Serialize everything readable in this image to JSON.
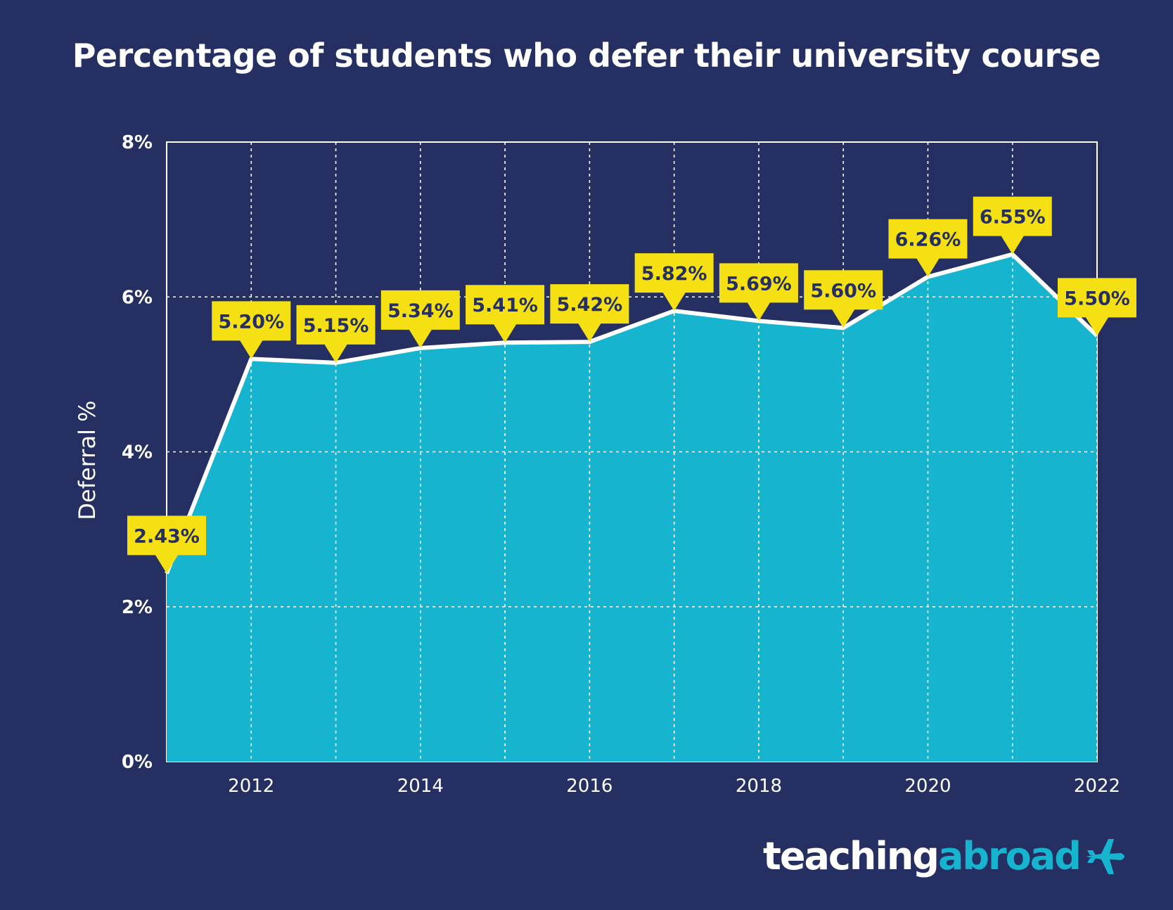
{
  "title": "Percentage of students who defer their university course",
  "logo": {
    "part1": "teaching",
    "part2": "abroad",
    "icon": "airplane-icon"
  },
  "colors": {
    "background": "#252f61",
    "area": "#17b4cf",
    "line": "#ffffff",
    "label_bg": "#f5e014",
    "label_text": "#252f61"
  },
  "chart_data": {
    "type": "area",
    "title": "Percentage of students who defer their university course",
    "xlabel": "",
    "ylabel": "Deferral %",
    "x": [
      2011,
      2012,
      2013,
      2014,
      2015,
      2016,
      2017,
      2018,
      2019,
      2020,
      2021,
      2022
    ],
    "values": [
      2.43,
      5.2,
      5.15,
      5.34,
      5.41,
      5.42,
      5.82,
      5.69,
      5.6,
      6.26,
      6.55,
      5.5
    ],
    "data_labels": [
      "2.43%",
      "5.20%",
      "5.15%",
      "5.34%",
      "5.41%",
      "5.42%",
      "5.82%",
      "5.69%",
      "5.60%",
      "6.26%",
      "6.55%",
      "5.50%"
    ],
    "xticks": [
      2012,
      2014,
      2016,
      2018,
      2020,
      2022
    ],
    "xtick_labels": [
      "2012",
      "2014",
      "2016",
      "2018",
      "2020",
      "2022"
    ],
    "yticks": [
      0,
      2,
      4,
      6,
      8
    ],
    "ytick_labels": [
      "0%",
      "2%",
      "4%",
      "6%",
      "8%"
    ],
    "xlim": [
      2011,
      2022
    ],
    "ylim": [
      0,
      8
    ],
    "grid": true
  }
}
